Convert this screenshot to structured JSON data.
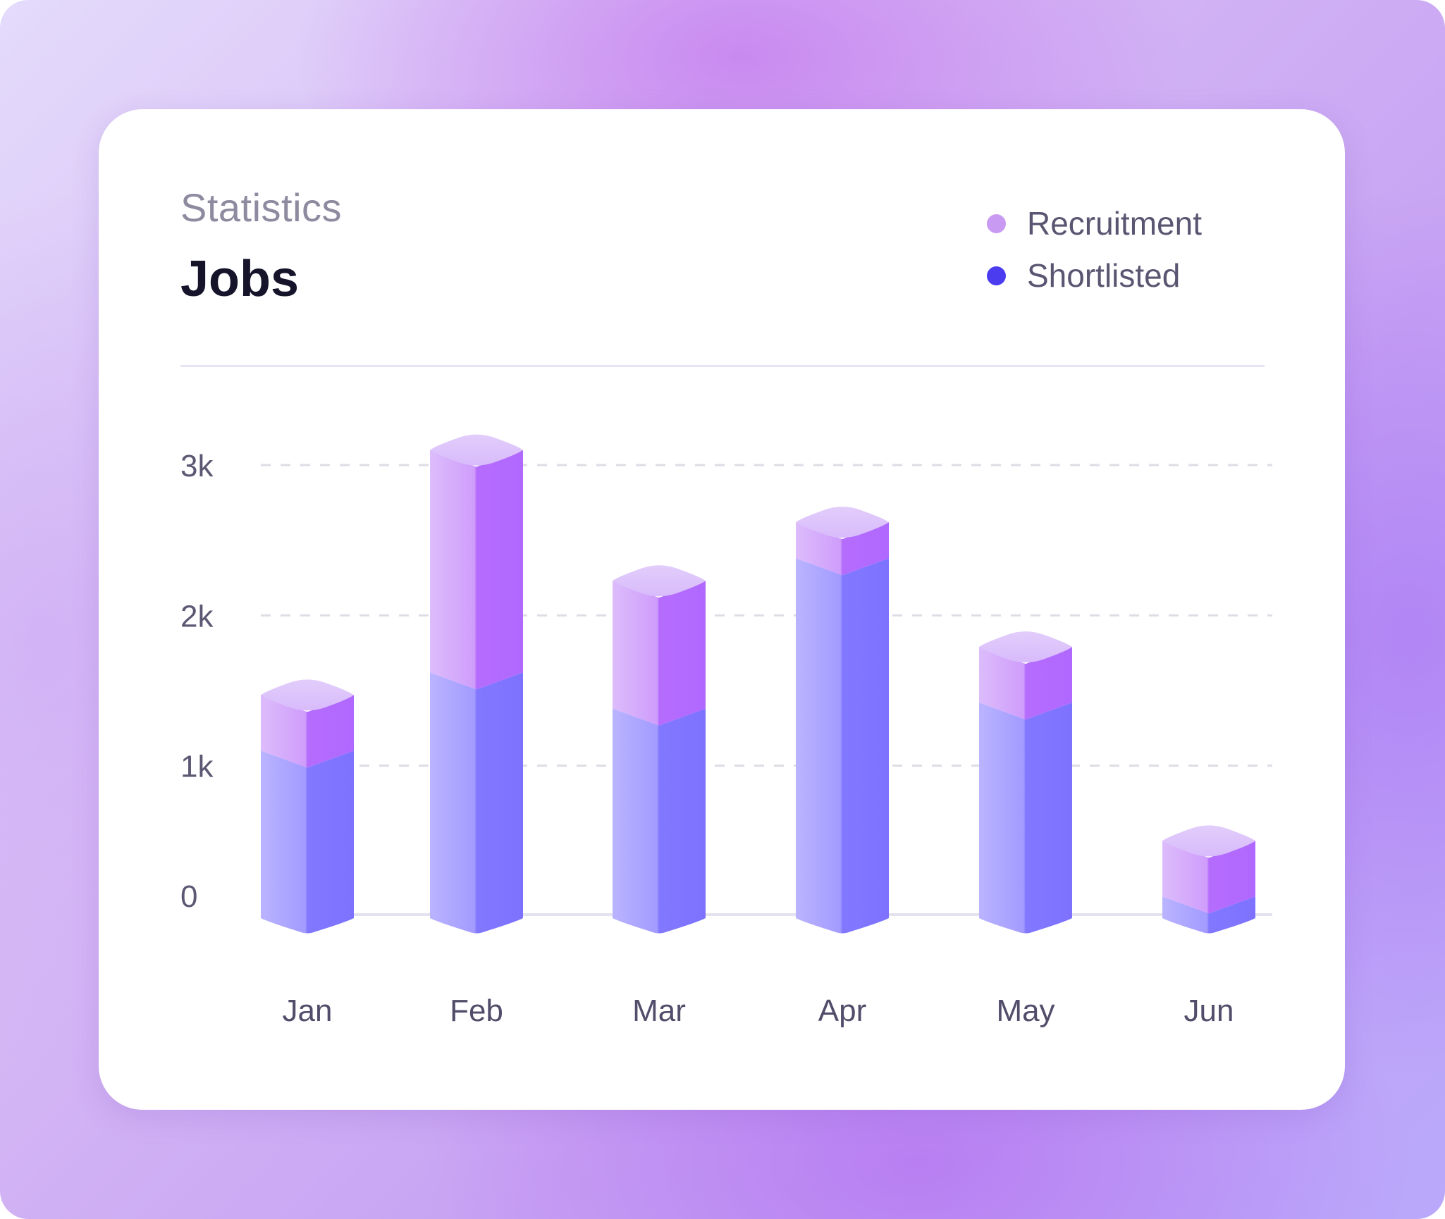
{
  "header": {
    "subtitle": "Statistics",
    "title": "Jobs"
  },
  "legend": [
    {
      "label": "Recruitment",
      "color": "#c99af2"
    },
    {
      "label": "Shortlisted",
      "color": "#4b3cf0"
    }
  ],
  "chart_data": {
    "type": "bar",
    "stacked": true,
    "categories": [
      "Jan",
      "Feb",
      "Mar",
      "Apr",
      "May",
      "Jun"
    ],
    "series": [
      {
        "name": "Shortlisted",
        "values": [
          1100,
          1620,
          1380,
          2380,
          1420,
          130
        ]
      },
      {
        "name": "Recruitment",
        "values": [
          370,
          1480,
          850,
          240,
          370,
          370
        ]
      }
    ],
    "yticks": [
      {
        "value": 0,
        "label": "0"
      },
      {
        "value": 1000,
        "label": "1k"
      },
      {
        "value": 2000,
        "label": "2k"
      },
      {
        "value": 3000,
        "label": "3k"
      }
    ],
    "ylim": [
      0,
      3000
    ],
    "grid": true,
    "legend_position": "top-right",
    "title": "Jobs",
    "xlabel": "",
    "ylabel": ""
  }
}
